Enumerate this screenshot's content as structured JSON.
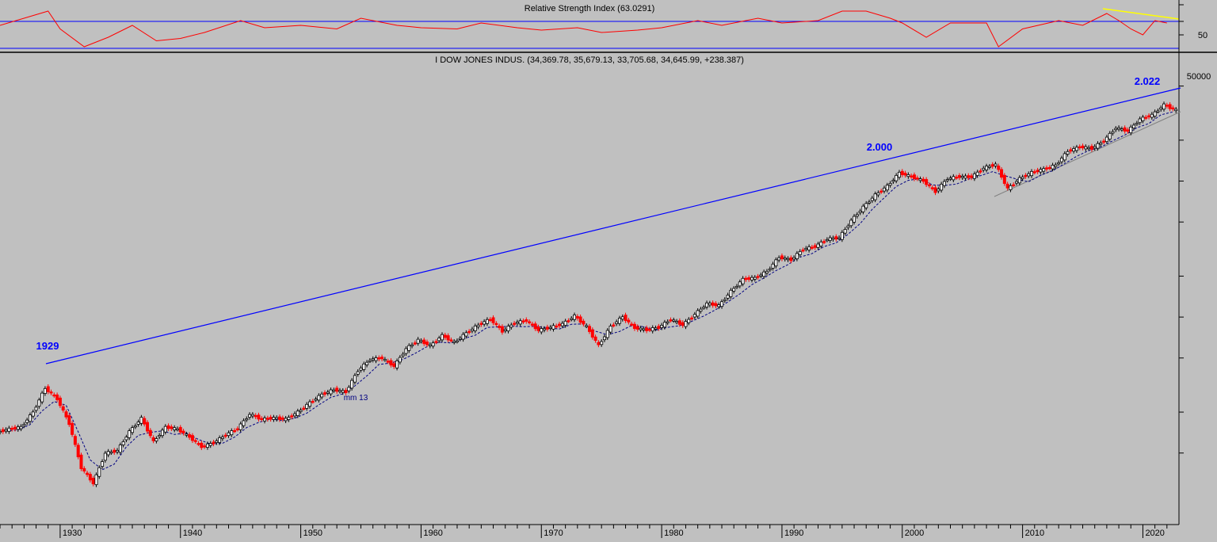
{
  "rsi_panel": {
    "title": "Relative Strength Index (63.0291)",
    "y_ticks": [
      "50"
    ]
  },
  "price_panel": {
    "header": "I DOW JONES INDUS. (34,369.78, 35,679.13, 33,705.68, 34,645.99, +238.387)",
    "y_ticks": [
      "50000"
    ]
  },
  "annotations": {
    "peak_1929": "1929",
    "peak_2000": "2.000",
    "peak_2022": "2.022",
    "ma_label": "mm 13"
  },
  "x_axis": {
    "labels": [
      "1930",
      "1940",
      "1950",
      "1960",
      "1970",
      "1980",
      "1990",
      "2000",
      "2010",
      "2020"
    ]
  },
  "colors": {
    "background": "#c0c0c0",
    "rsi_line": "#ff0000",
    "rsi_level_line": "#0000ff",
    "rsi_trend_line": "#ffff00",
    "up_candle": "#000000",
    "down_candle": "#ff0000",
    "resistance_line": "#0000ff",
    "support_line": "#808080",
    "moving_average": "#000080",
    "annotation_text": "#0000ff"
  },
  "chart_data": [
    {
      "type": "line",
      "title": "Relative Strength Index (63.0291)",
      "series": [
        {
          "x": [
            1925,
            1929,
            1930,
            1932,
            1934,
            1936,
            1938,
            1940,
            1942,
            1945,
            1947,
            1950,
            1953,
            1955,
            1958,
            1960,
            1963,
            1965,
            1968,
            1970,
            1973,
            1975,
            1978,
            1980,
            1983,
            1985,
            1988,
            1990,
            1993,
            1995,
            1997,
            1999,
            2000,
            2002,
            2004,
            2007,
            2008,
            2010,
            2013,
            2015,
            2017,
            2018,
            2019,
            2020,
            2021,
            2022
          ],
          "values": [
            58,
            70,
            55,
            40,
            48,
            58,
            45,
            47,
            52,
            62,
            56,
            58,
            55,
            64,
            58,
            56,
            55,
            60,
            56,
            54,
            56,
            52,
            54,
            56,
            62,
            58,
            64,
            60,
            62,
            70,
            70,
            64,
            60,
            48,
            60,
            60,
            40,
            55,
            62,
            58,
            68,
            62,
            55,
            50,
            62,
            60
          ]
        }
      ]
    },
    {
      "type": "candlestick",
      "scale": "log",
      "ylim": [
        40,
        60000
      ],
      "xlim": [
        1925,
        2023
      ],
      "series": [
        {
          "x": [
            1925,
            1926,
            1927,
            1928,
            1929,
            1930,
            1931,
            1932,
            1933,
            1934,
            1935,
            1936,
            1937,
            1938,
            1939,
            1940,
            1941,
            1942,
            1943,
            1944,
            1945,
            1946,
            1947,
            1948,
            1949,
            1950,
            1951,
            1952,
            1953,
            1954,
            1955,
            1956,
            1957,
            1958,
            1959,
            1960,
            1961,
            1962,
            1963,
            1964,
            1965,
            1966,
            1967,
            1968,
            1969,
            1970,
            1971,
            1972,
            1973,
            1974,
            1975,
            1976,
            1977,
            1978,
            1979,
            1980,
            1981,
            1982,
            1983,
            1984,
            1985,
            1986,
            1987,
            1988,
            1989,
            1990,
            1991,
            1992,
            1993,
            1994,
            1995,
            1996,
            1997,
            1998,
            1999,
            2000,
            2001,
            2002,
            2003,
            2004,
            2005,
            2006,
            2007,
            2008,
            2009,
            2010,
            2011,
            2012,
            2013,
            2014,
            2015,
            2016,
            2017,
            2018,
            2019,
            2020,
            2021,
            2022
          ],
          "values": [
            150,
            155,
            200,
            300,
            250,
            165,
            78,
            60,
            100,
            104,
            144,
            180,
            121,
            155,
            150,
            131,
            111,
            119,
            136,
            152,
            193,
            177,
            181,
            177,
            200,
            235,
            270,
            292,
            281,
            404,
            488,
            500,
            435,
            584,
            679,
            616,
            731,
            652,
            763,
            874,
            969,
            786,
            905,
            944,
            800,
            839,
            890,
            1020,
            850,
            616,
            852,
            1005,
            831,
            805,
            839,
            964,
            875,
            1047,
            1259,
            1212,
            1547,
            1896,
            1939,
            2169,
            2753,
            2634,
            3169,
            3301,
            3754,
            3834,
            5117,
            6448,
            7908,
            9181,
            11497,
            10787,
            10022,
            8342,
            10454,
            10783,
            10718,
            12463,
            13265,
            8776,
            10428,
            11578,
            12218,
            13104,
            16577,
            17823,
            17425,
            19763,
            24719,
            23327,
            28538,
            30606,
            36338,
            33147
          ]
        }
      ]
    }
  ]
}
